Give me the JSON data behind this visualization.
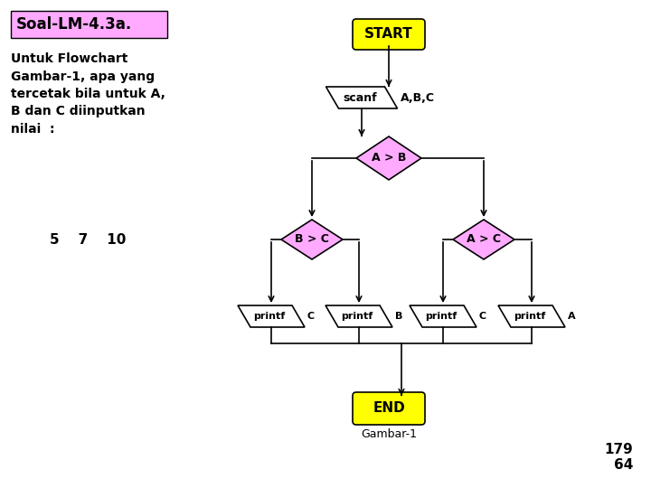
{
  "title": "Soal-LM-4.3a.",
  "title_bg": "#ffaaff",
  "description": "Untuk Flowchart\nGambar-1, apa yang\ntercetak bila untuk A,\nB dan C diinputkan\nnilai  :",
  "values": "5    7    10",
  "background_color": "#ffffff",
  "start_end_color": "#ffff00",
  "diamond_color": "#ffaaff",
  "parallelogram_color": "#ffffff",
  "line_color": "#000000",
  "text_color": "#000000",
  "gambar_label": "Gambar-1",
  "page_numbers": "179\n64",
  "scanf_label": "scanf",
  "scanf_param": "A,B,C",
  "diamond1_label": "A > B",
  "diamond2_label": "B > C",
  "diamond3_label": "A > C",
  "printf_params": [
    "C",
    "B",
    "C",
    "A"
  ]
}
